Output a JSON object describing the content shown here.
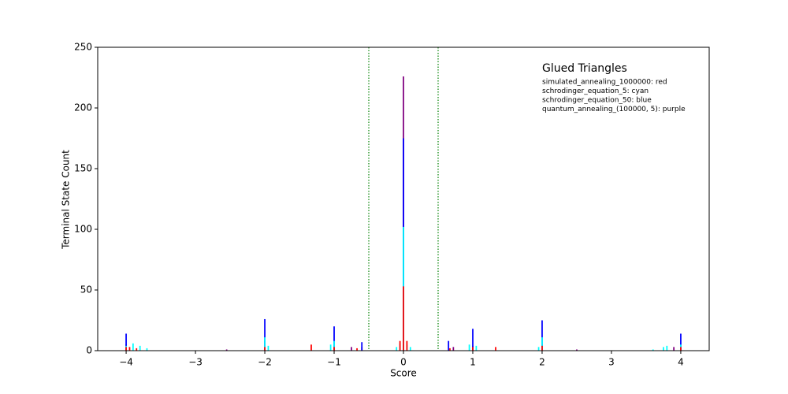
{
  "chart_data": {
    "type": "bar",
    "title": "Glued Triangles",
    "x_label": "Score",
    "y_label": "Terminal State Count",
    "xlim": [
      -4.41,
      4.41
    ],
    "ylim": [
      0,
      250
    ],
    "xticks": [
      {
        "value": -4,
        "label": "−4"
      },
      {
        "value": -3,
        "label": "−3"
      },
      {
        "value": -2,
        "label": "−2"
      },
      {
        "value": -1,
        "label": "−1"
      },
      0,
      1,
      2,
      3,
      4
    ],
    "yticks": [
      0,
      50,
      100,
      150,
      200,
      250
    ],
    "bar_width": 0.02,
    "vlines": [
      -0.5,
      0.5
    ],
    "vline_color": "green",
    "series": [
      {
        "name": "simulated_annealing_1000000: red",
        "color": "#ff0000",
        "x": [
          -4,
          -3.95,
          -3.85,
          -2,
          -1.33,
          -1,
          -0.67,
          -0.05,
          0,
          0.05,
          0.67,
          1,
          1.33,
          2,
          4
        ],
        "values": [
          3,
          3,
          2,
          3,
          5,
          3,
          2,
          8,
          53,
          8,
          2,
          3,
          3,
          4,
          3
        ]
      },
      {
        "name": "schrodinger_equation_5: cyan",
        "color": "#00ffff",
        "x": [
          -4,
          -3.9,
          -3.8,
          -3.7,
          -2,
          -1.95,
          -1.05,
          -1,
          -0.1,
          -0.05,
          0,
          0.05,
          0.1,
          0.95,
          1.05,
          1.95,
          2,
          3.6,
          3.75,
          3.8,
          4
        ],
        "values": [
          4,
          6,
          4,
          2,
          11,
          4,
          5,
          8,
          3,
          6,
          102,
          5,
          3,
          5,
          4,
          3,
          11,
          1,
          3,
          4,
          5
        ]
      },
      {
        "name": "schrodinger_equation_50: blue",
        "color": "#0000ff",
        "x": [
          -4,
          -2,
          -1,
          -0.6,
          0,
          0.65,
          1,
          2,
          4
        ],
        "values": [
          14,
          26,
          20,
          7,
          175,
          8,
          18,
          25,
          14
        ]
      },
      {
        "name": "quantum_annealing_(100000, 5): purple",
        "color": "#800080",
        "x": [
          -4,
          -2.55,
          -2,
          -1,
          -0.75,
          -0.6,
          0,
          0.72,
          1,
          2,
          2.5,
          3.9,
          4
        ],
        "values": [
          5,
          1,
          8,
          4,
          3,
          3,
          226,
          3,
          4,
          5,
          1,
          3,
          4
        ]
      }
    ]
  }
}
